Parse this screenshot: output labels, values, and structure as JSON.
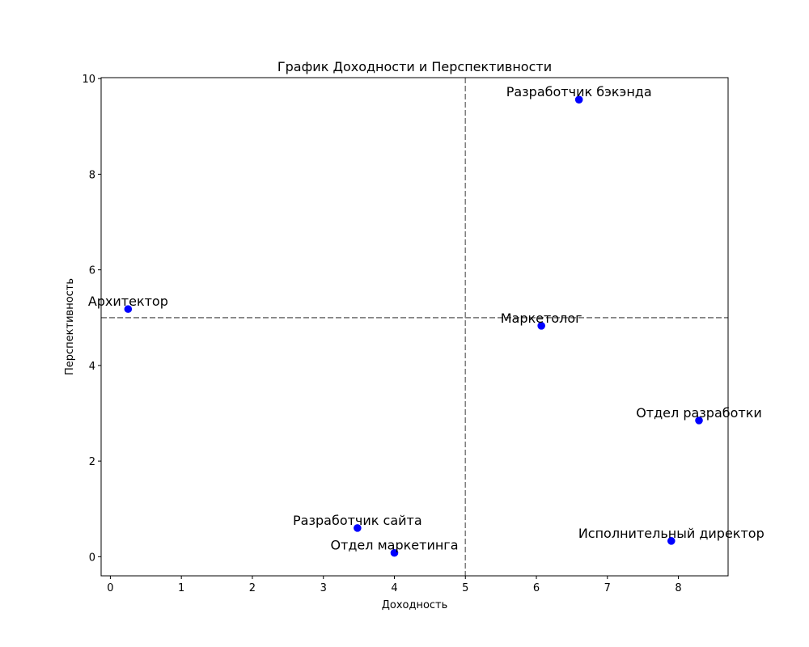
{
  "chart_data": {
    "type": "scatter",
    "title": "График Доходности и Перспективности",
    "xlabel": "Доходность",
    "ylabel": "Перспективность",
    "xlim": [
      -0.13,
      8.7
    ],
    "ylim": [
      -0.4,
      10.02
    ],
    "x_ticks": [
      0,
      1,
      2,
      3,
      4,
      5,
      6,
      7,
      8
    ],
    "y_ticks": [
      0,
      2,
      4,
      6,
      8,
      10
    ],
    "grid": false,
    "point_color": "#0000ff",
    "reference_lines": {
      "vertical_x": 5,
      "horizontal_y": 5,
      "color": "#808080",
      "style": "dashed"
    },
    "points": [
      {
        "label": "Архитектор",
        "x": 0.25,
        "y": 5.18
      },
      {
        "label": "Разработчик бэкэнда",
        "x": 6.6,
        "y": 9.56
      },
      {
        "label": "Маркетолог",
        "x": 6.07,
        "y": 4.83
      },
      {
        "label": "Отдел разработки",
        "x": 8.29,
        "y": 2.85
      },
      {
        "label": "Разработчик сайта",
        "x": 3.48,
        "y": 0.6
      },
      {
        "label": "Отдел маркетинга",
        "x": 4.0,
        "y": 0.08
      },
      {
        "label": "Исполнительный директор",
        "x": 7.9,
        "y": 0.33
      }
    ]
  }
}
